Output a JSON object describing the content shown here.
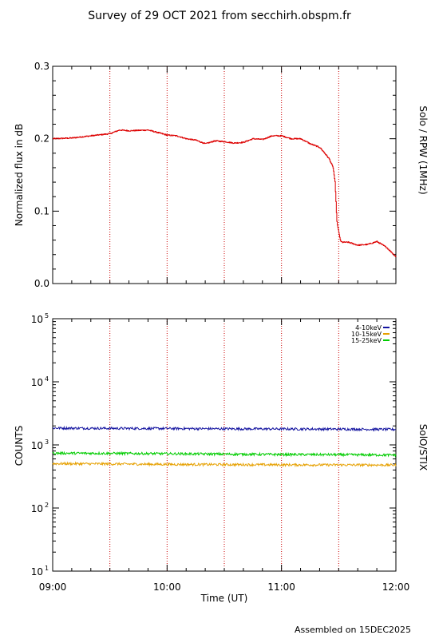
{
  "title": "Survey of 29 OCT 2021 from secchirh.obspm.fr",
  "footer": "Assembled on 15DEC2025",
  "colors": {
    "rpw": "#dd0000",
    "marker": "#cc0000",
    "stix_4_10": "#1414a0",
    "stix_10_15": "#e6a000",
    "stix_15_25": "#00cc00"
  },
  "chart_data": [
    {
      "type": "line",
      "ylabel": "Normalized flux in dB",
      "right_label": "Solo / RPW (1MHz)",
      "xlim": [
        "09:00",
        "12:00"
      ],
      "ylim": [
        0.0,
        0.3
      ],
      "yticks": [
        "0.0",
        "0.1",
        "0.2",
        "0.3"
      ],
      "grid": "dotted vertical markers",
      "markers": [
        "09:30",
        "10:00",
        "10:30",
        "11:00",
        "11:30"
      ],
      "series": [
        {
          "x": [
            "09:00",
            "09:10",
            "09:20",
            "09:30",
            "09:35",
            "09:40",
            "09:50",
            "10:00",
            "10:05",
            "10:10",
            "10:15",
            "10:20",
            "10:25",
            "10:30",
            "10:35",
            "10:40",
            "10:45",
            "10:50",
            "10:55",
            "11:00",
            "11:05",
            "11:10",
            "11:15",
            "11:20",
            "11:22",
            "11:25",
            "11:27",
            "11:28",
            "11:29",
            "11:30",
            "11:31",
            "11:32",
            "11:35",
            "11:40",
            "11:45",
            "11:50",
            "11:55",
            "12:00"
          ],
          "values": [
            0.2,
            0.201,
            0.204,
            0.207,
            0.212,
            0.211,
            0.212,
            0.205,
            0.204,
            0.2,
            0.198,
            0.193,
            0.197,
            0.196,
            0.194,
            0.195,
            0.2,
            0.199,
            0.204,
            0.204,
            0.2,
            0.2,
            0.193,
            0.188,
            0.182,
            0.172,
            0.16,
            0.14,
            0.085,
            0.07,
            0.058,
            0.057,
            0.057,
            0.053,
            0.054,
            0.058,
            0.05,
            0.037
          ]
        }
      ]
    },
    {
      "type": "line",
      "ylabel": "COUNTS",
      "right_label": "SolO/STIX",
      "xlabel": "Time (UT)",
      "xlim": [
        "09:00",
        "12:00"
      ],
      "xticks": [
        "09:00",
        "10:00",
        "11:00",
        "12:00"
      ],
      "yscale": "log",
      "ylim": [
        10,
        100000
      ],
      "yticks": [
        {
          "base": "10",
          "exp": "1"
        },
        {
          "base": "10",
          "exp": "2"
        },
        {
          "base": "10",
          "exp": "3"
        },
        {
          "base": "10",
          "exp": "4"
        },
        {
          "base": "10",
          "exp": "5"
        }
      ],
      "grid": "dotted vertical markers",
      "markers": [
        "09:30",
        "10:00",
        "10:30",
        "11:00",
        "11:30"
      ],
      "legend": "top-right",
      "series": [
        {
          "name": "4-10keV",
          "x": [
            "09:00",
            "09:30",
            "10:00",
            "10:30",
            "11:00",
            "11:30",
            "12:00"
          ],
          "values": [
            1850,
            1830,
            1820,
            1800,
            1790,
            1780,
            1760
          ]
        },
        {
          "name": "10-15keV",
          "x": [
            "09:00",
            "09:30",
            "10:00",
            "10:30",
            "11:00",
            "11:30",
            "12:00"
          ],
          "values": [
            505,
            500,
            492,
            488,
            484,
            482,
            480
          ]
        },
        {
          "name": "15-25keV",
          "x": [
            "09:00",
            "09:30",
            "10:00",
            "10:30",
            "11:00",
            "11:30",
            "12:00"
          ],
          "values": [
            740,
            735,
            725,
            715,
            705,
            700,
            690
          ]
        }
      ]
    }
  ]
}
